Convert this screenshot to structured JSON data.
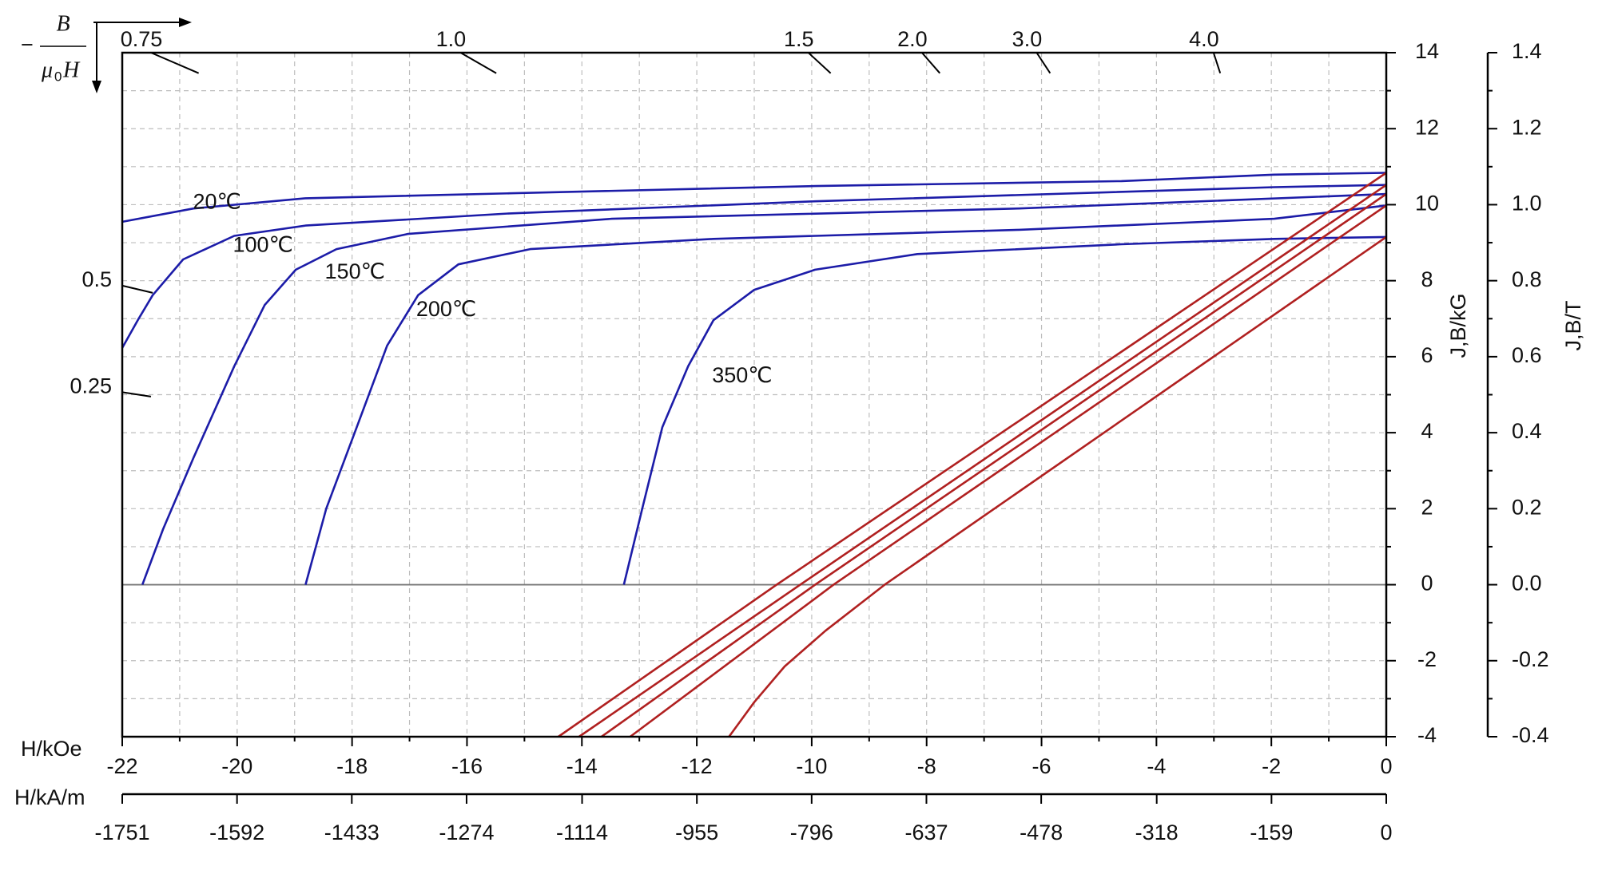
{
  "chart_data": {
    "type": "line",
    "xlabel": "H/kOe",
    "xlim": [
      -22,
      0
    ],
    "xticks": [
      -22,
      -20,
      -18,
      -16,
      -14,
      -12,
      -10,
      -8,
      -6,
      -4,
      -2,
      0
    ],
    "xminorticks": [
      -21,
      -19,
      -17,
      -15,
      -13,
      -11,
      -9,
      -7,
      -5,
      -3,
      -1
    ],
    "x2label": "H/kA/m",
    "x2lim": [
      -1751,
      0
    ],
    "x2ticks": [
      -1751,
      -1592,
      -1433,
      -1274,
      -1114,
      -955,
      -796,
      -637,
      -478,
      -318,
      -159,
      0
    ],
    "ylabel": "J,B/kG",
    "ylim": [
      -4,
      14
    ],
    "yticks": [
      -4,
      -2,
      0,
      2,
      4,
      6,
      8,
      10,
      12,
      14
    ],
    "yminorticks": [
      -3,
      -1,
      1,
      3,
      5,
      7,
      9,
      11,
      13
    ],
    "y2label": "J,B/T",
    "y2lim": [
      -0.4,
      1.4
    ],
    "y2ticks": [
      -0.4,
      -0.2,
      {
        "value": 0,
        "label": "0.0"
      },
      0.2,
      0.4,
      0.6,
      0.8,
      {
        "value": 1,
        "label": "1.0"
      },
      1.2,
      1.4
    ],
    "y2minorticks": [
      -0.3,
      -0.1,
      0.1,
      0.3,
      0.5,
      0.7,
      0.9,
      1.1,
      1.3
    ],
    "grid": true,
    "permeance_label": {
      "sign": "−",
      "numerator": "B",
      "denominator": [
        "μ",
        "0",
        "H"
      ]
    },
    "permeance_ticks": [
      {
        "value": 0.75,
        "label": "0.75",
        "at": [
          -20.67,
          13.46
        ]
      },
      {
        "value": 1,
        "label": "1.0",
        "at": [
          -15.49,
          13.46
        ]
      },
      {
        "value": 1.5,
        "label": "1.5",
        "at": [
          -9.67,
          13.46
        ]
      },
      {
        "value": 2,
        "label": "2.0",
        "at": [
          -7.77,
          13.46
        ]
      },
      {
        "value": 3,
        "label": "3.0",
        "at": [
          -5.85,
          13.46
        ]
      },
      {
        "value": 4,
        "label": "4.0",
        "at": [
          -2.89,
          13.46
        ]
      },
      {
        "value": 0.5,
        "label": "0.5",
        "at": [
          -21.47,
          7.68
        ]
      },
      {
        "value": 0.25,
        "label": "0.25",
        "at": [
          -21.5,
          4.95
        ]
      }
    ],
    "series": [
      {
        "name": "20℃",
        "color": "#1c1ca8",
        "annotation_at": [
          -20.35,
          10.04
        ],
        "x": [
          -22,
          -20.76,
          -18.81,
          -15.26,
          -9.94,
          -4.61,
          -1.95,
          0
        ],
        "values": [
          9.55,
          9.9,
          10.17,
          10.3,
          10.49,
          10.62,
          10.79,
          10.84
        ]
      },
      {
        "name": "100℃",
        "color": "#1c1ca8",
        "annotation_at": [
          -19.55,
          8.91
        ],
        "x": [
          -22,
          -21.73,
          -21.47,
          -20.94,
          -20.05,
          -18.81,
          -15.26,
          -9.94,
          -1.95,
          0
        ],
        "values": [
          6.23,
          6.96,
          7.62,
          8.56,
          9.18,
          9.45,
          9.77,
          10.09,
          10.46,
          10.52
        ]
      },
      {
        "name": "150℃",
        "color": "#1c1ca8",
        "annotation_at": [
          -17.95,
          8.21
        ],
        "x": [
          -21.65,
          -21.29,
          -20.76,
          -20.05,
          -19.52,
          -18.98,
          -18.27,
          -17.03,
          -13.48,
          -6.39,
          0
        ],
        "values": [
          0,
          1.46,
          3.34,
          5.75,
          7.36,
          8.29,
          8.83,
          9.23,
          9.63,
          9.9,
          10.28
        ]
      },
      {
        "name": "200℃",
        "color": "#1c1ca8",
        "annotation_at": [
          -16.36,
          7.22
        ],
        "x": [
          -18.81,
          -18.45,
          -17.92,
          -17.39,
          -16.85,
          -16.15,
          -14.9,
          -11.71,
          -6.39,
          -1.95,
          0
        ],
        "values": [
          0,
          2.0,
          4.14,
          6.29,
          7.62,
          8.43,
          8.83,
          9.1,
          9.34,
          9.63,
          9.98
        ]
      },
      {
        "name": "350℃",
        "color": "#1c1ca8",
        "annotation_at": [
          -11.21,
          5.48
        ],
        "x": [
          -13.27,
          -12.95,
          -12.6,
          -12.15,
          -11.71,
          -11.0,
          -9.94,
          -8.16,
          -4.61,
          -1.95,
          0
        ],
        "values": [
          0,
          2.0,
          4.14,
          5.75,
          6.96,
          7.76,
          8.29,
          8.7,
          8.96,
          9.1,
          9.15
        ]
      },
      {
        "color": "#b02020",
        "x": [
          -14.41,
          -10.61,
          0
        ],
        "values": [
          -4,
          0,
          10.84
        ]
      },
      {
        "color": "#b02020",
        "x": [
          -14.05,
          -10.2,
          0
        ],
        "values": [
          -4,
          0,
          10.52
        ]
      },
      {
        "color": "#b02020",
        "x": [
          -13.66,
          -9.94,
          0
        ],
        "values": [
          -4,
          0,
          10.28
        ]
      },
      {
        "color": "#b02020",
        "x": [
          -13.16,
          -9.62,
          0
        ],
        "values": [
          -4,
          0,
          9.98
        ]
      },
      {
        "color": "#b02020",
        "x": [
          -11.44,
          -11.0,
          -10.47,
          -9.76,
          -8.73,
          0
        ],
        "values": [
          -4,
          -3.09,
          -2.15,
          -1.21,
          0,
          9.15
        ]
      }
    ]
  }
}
